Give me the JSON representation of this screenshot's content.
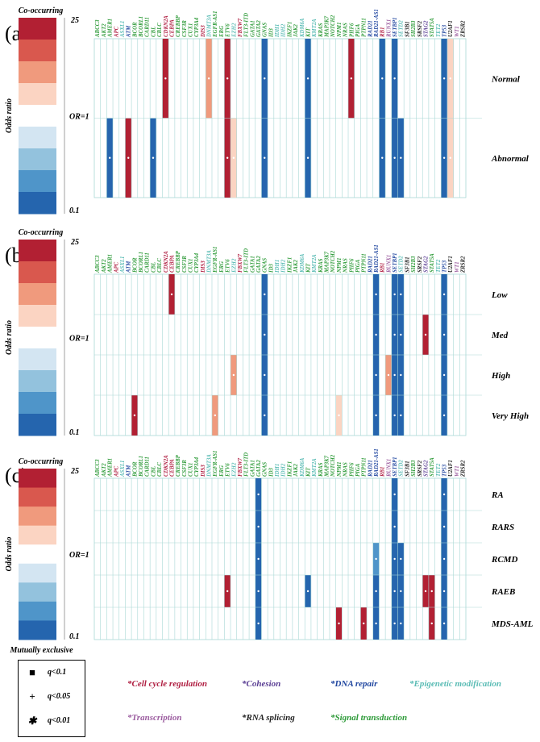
{
  "genes": [
    "ABCC3",
    "AKT2",
    "AMER1",
    "APC",
    "ASXL1",
    "ATM",
    "BCOR",
    "BCORL1",
    "CARD11",
    "CBL",
    "CBLC",
    "CDKN2A",
    "CEBPA",
    "CREBBP",
    "CSF3R",
    "CUX1",
    "CYP3A4",
    "DIS3",
    "DNMT3A",
    "EGFR-AS1",
    "ERG",
    "ETV6",
    "EZH2",
    "FBXW7",
    "FLT3-ITD",
    "GATA1",
    "GATA2",
    "GNAS",
    "ID3",
    "IDH1",
    "IDH2",
    "IKZF1",
    "JAK2",
    "KDM6A",
    "KIT",
    "KMT2A",
    "KRAS",
    "MAP3K7",
    "NOTCH2",
    "NPM1",
    "NRAS",
    "PHF6",
    "PIGA",
    "PTPN11",
    "RAD21",
    "RAD21-AS1",
    "RB1",
    "RUNX1",
    "SETBP1",
    "SETD2",
    "SF3B1",
    "SH2B3",
    "SRSF2",
    "STAG2",
    "STAT5A",
    "TET2",
    "TP53",
    "U2AF1",
    "WT1",
    "ZRSR2"
  ],
  "gene_categories": [
    "signal",
    "signal",
    "signal",
    "cell",
    "epi",
    "repair",
    "signal",
    "signal",
    "signal",
    "signal",
    "signal",
    "cell",
    "cell",
    "signal",
    "signal",
    "signal",
    "signal",
    "cell",
    "epi",
    "signal",
    "signal",
    "signal",
    "epi",
    "cell",
    "signal",
    "signal",
    "signal",
    "signal",
    "signal",
    "epi",
    "epi",
    "signal",
    "signal",
    "epi",
    "signal",
    "epi",
    "signal",
    "signal",
    "signal",
    "signal",
    "signal",
    "signal",
    "signal",
    "signal",
    "repair",
    "repair",
    "cell",
    "transcription",
    "repair",
    "epi",
    "rna",
    "signal",
    "rna",
    "cohesion",
    "signal",
    "epi",
    "repair",
    "rna",
    "transcription",
    "rna"
  ],
  "colors": {
    "scale": [
      "#b22033",
      "#d9584e",
      "#f09a7d",
      "#fbd4c2",
      "#ffffff",
      "#d3e5f2",
      "#93c2dd",
      "#4f95c9",
      "#2565ae"
    ],
    "categories": {
      "cell": "#b01f42",
      "cohesion": "#5b3f94",
      "repair": "#2147a0",
      "epi": "#5bbcb5",
      "transcription": "#9b5c9f",
      "rna": "#222222",
      "signal": "#2f9b3a"
    },
    "grid": "#a9d8d6"
  },
  "colorbar": {
    "top_label": "Co-occurring",
    "max_label": "25",
    "mid_label": "OR=1",
    "min_label": "0.1",
    "axis_label": "Odds ratio",
    "bottom_label": "Mutually exclusive"
  },
  "legend": {
    "items": [
      {
        "symbol": "■",
        "label": "q<0.1"
      },
      {
        "symbol": "+",
        "label": "q<0.05"
      },
      {
        "symbol": "✱",
        "label": "q<0.01"
      }
    ]
  },
  "categories_legend": [
    {
      "key": "cell",
      "label": "*Cell cycle regulation"
    },
    {
      "key": "cohesion",
      "label": "*Cohesion"
    },
    {
      "key": "repair",
      "label": "*DNA repair"
    },
    {
      "key": "epi",
      "label": "*Epigenetic modification"
    },
    {
      "key": "transcription",
      "label": "*Transcription"
    },
    {
      "key": "rna",
      "label": "*RNA splicing"
    },
    {
      "key": "signal",
      "label": "*Signal transduction"
    }
  ],
  "chart_data": [
    {
      "type": "heatmap",
      "panel_label": "(a)",
      "rows": [
        "Normal",
        "Abnormal"
      ],
      "cells": [
        {
          "gene": "CDKN2A",
          "row": 0,
          "level": 0
        },
        {
          "gene": "DNMT3A",
          "row": 0,
          "level": 2
        },
        {
          "gene": "ETV6",
          "row": 0,
          "level": 0
        },
        {
          "gene": "GNAS",
          "row": 0,
          "level": 8
        },
        {
          "gene": "KIT",
          "row": 0,
          "level": 8
        },
        {
          "gene": "PHF6",
          "row": 0,
          "level": 0
        },
        {
          "gene": "RB1",
          "row": 0,
          "level": 8
        },
        {
          "gene": "SETBP1",
          "row": 0,
          "level": 8
        },
        {
          "gene": "TP53",
          "row": 0,
          "level": 8
        },
        {
          "gene": "U2AF1",
          "row": 0,
          "level": 3
        },
        {
          "gene": "AMER1",
          "row": 1,
          "level": 8
        },
        {
          "gene": "ATM",
          "row": 1,
          "level": 0
        },
        {
          "gene": "CBL",
          "row": 1,
          "level": 8
        },
        {
          "gene": "ETV6",
          "row": 1,
          "level": 0
        },
        {
          "gene": "EZH2",
          "row": 1,
          "level": 3
        },
        {
          "gene": "GNAS",
          "row": 1,
          "level": 8
        },
        {
          "gene": "KIT",
          "row": 1,
          "level": 8
        },
        {
          "gene": "RB1",
          "row": 1,
          "level": 8
        },
        {
          "gene": "SETBP1",
          "row": 1,
          "level": 8
        },
        {
          "gene": "SETD2",
          "row": 1,
          "level": 8
        },
        {
          "gene": "TP53",
          "row": 1,
          "level": 8
        },
        {
          "gene": "U2AF1",
          "row": 1,
          "level": 3
        }
      ]
    },
    {
      "type": "heatmap",
      "panel_label": "(b)",
      "rows": [
        "Low",
        "Med",
        "High",
        "Very High"
      ],
      "cells": [
        {
          "gene": "CEBPA",
          "row": 0,
          "level": 0
        },
        {
          "gene": "GNAS",
          "row": 0,
          "level": 8
        },
        {
          "gene": "RAD21-AS1",
          "row": 0,
          "level": 8
        },
        {
          "gene": "SETBP1",
          "row": 0,
          "level": 8
        },
        {
          "gene": "SETD2",
          "row": 0,
          "level": 8
        },
        {
          "gene": "TP53",
          "row": 0,
          "level": 8
        },
        {
          "gene": "GNAS",
          "row": 1,
          "level": 8
        },
        {
          "gene": "RAD21-AS1",
          "row": 1,
          "level": 8
        },
        {
          "gene": "SETBP1",
          "row": 1,
          "level": 8
        },
        {
          "gene": "SETD2",
          "row": 1,
          "level": 8
        },
        {
          "gene": "STAG2",
          "row": 1,
          "level": 0
        },
        {
          "gene": "TP53",
          "row": 1,
          "level": 8
        },
        {
          "gene": "EZH2",
          "row": 2,
          "level": 2
        },
        {
          "gene": "GNAS",
          "row": 2,
          "level": 8
        },
        {
          "gene": "RAD21-AS1",
          "row": 2,
          "level": 8
        },
        {
          "gene": "RUNX1",
          "row": 2,
          "level": 2
        },
        {
          "gene": "SETBP1",
          "row": 2,
          "level": 8
        },
        {
          "gene": "SETD2",
          "row": 2,
          "level": 8
        },
        {
          "gene": "TP53",
          "row": 2,
          "level": 8
        },
        {
          "gene": "BCOR",
          "row": 3,
          "level": 0
        },
        {
          "gene": "EGFR-AS1",
          "row": 3,
          "level": 2
        },
        {
          "gene": "GNAS",
          "row": 3,
          "level": 8
        },
        {
          "gene": "NPM1",
          "row": 3,
          "level": 3
        },
        {
          "gene": "RAD21-AS1",
          "row": 3,
          "level": 8
        },
        {
          "gene": "SETBP1",
          "row": 3,
          "level": 8
        },
        {
          "gene": "SETD2",
          "row": 3,
          "level": 8
        },
        {
          "gene": "TP53",
          "row": 3,
          "level": 8
        }
      ]
    },
    {
      "type": "heatmap",
      "panel_label": "(c)",
      "rows": [
        "RA",
        "RARS",
        "RCMD",
        "RAEB",
        "MDS-AML"
      ],
      "cells": [
        {
          "gene": "GATA2",
          "row": 0,
          "level": 8
        },
        {
          "gene": "SETBP1",
          "row": 0,
          "level": 8
        },
        {
          "gene": "TP53",
          "row": 0,
          "level": 8
        },
        {
          "gene": "GATA2",
          "row": 1,
          "level": 8
        },
        {
          "gene": "SETBP1",
          "row": 1,
          "level": 8
        },
        {
          "gene": "TP53",
          "row": 1,
          "level": 8
        },
        {
          "gene": "GATA2",
          "row": 2,
          "level": 8
        },
        {
          "gene": "RAD21-AS1",
          "row": 2,
          "level": 7
        },
        {
          "gene": "SETBP1",
          "row": 2,
          "level": 8
        },
        {
          "gene": "SETD2",
          "row": 2,
          "level": 8
        },
        {
          "gene": "TP53",
          "row": 2,
          "level": 8
        },
        {
          "gene": "ETV6",
          "row": 3,
          "level": 0
        },
        {
          "gene": "GATA2",
          "row": 3,
          "level": 8
        },
        {
          "gene": "KIT",
          "row": 3,
          "level": 8
        },
        {
          "gene": "RAD21-AS1",
          "row": 3,
          "level": 8
        },
        {
          "gene": "SETBP1",
          "row": 3,
          "level": 8
        },
        {
          "gene": "SETD2",
          "row": 3,
          "level": 8
        },
        {
          "gene": "STAG2",
          "row": 3,
          "level": 0
        },
        {
          "gene": "STAT5A",
          "row": 3,
          "level": 0
        },
        {
          "gene": "TP53",
          "row": 3,
          "level": 8
        },
        {
          "gene": "GATA2",
          "row": 4,
          "level": 8
        },
        {
          "gene": "NPM1",
          "row": 4,
          "level": 0
        },
        {
          "gene": "PTPN11",
          "row": 4,
          "level": 0
        },
        {
          "gene": "RAD21-AS1",
          "row": 4,
          "level": 8
        },
        {
          "gene": "SETBP1",
          "row": 4,
          "level": 8
        },
        {
          "gene": "SETD2",
          "row": 4,
          "level": 8
        },
        {
          "gene": "STAT5A",
          "row": 4,
          "level": 0
        },
        {
          "gene": "TP53",
          "row": 4,
          "level": 8
        }
      ]
    }
  ]
}
